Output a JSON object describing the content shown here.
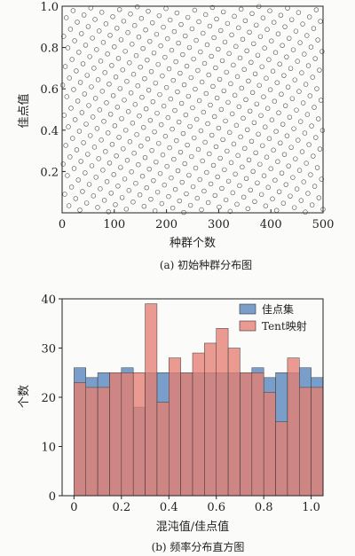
{
  "chart_data": [
    {
      "type": "scatter",
      "caption": "(a) 初始种群分布图",
      "xlabel": "种群个数",
      "ylabel": "佳点值",
      "xlim": [
        0,
        500
      ],
      "ylim": [
        0,
        1.0
      ],
      "xticks": [
        "0",
        "100",
        "200",
        "300",
        "400",
        "500"
      ],
      "yticks": [
        "0.2",
        "0.4",
        "0.6",
        "0.8",
        "1.0"
      ],
      "marker": "hollow-circle",
      "n_points": 500,
      "generator": "fractional part of i × golden ratio, i = 1…500",
      "point_color": "#555555"
    },
    {
      "type": "bar",
      "caption": "(b) 频率分布直方图",
      "xlabel": "混沌值/佳点值",
      "ylabel": "个数",
      "xlim": [
        -0.05,
        1.05
      ],
      "ylim": [
        0,
        40
      ],
      "xticks": [
        "0",
        "0.2",
        "0.4",
        "0.6",
        "0.8",
        "1.0"
      ],
      "yticks": [
        "0",
        "10",
        "20",
        "30",
        "40"
      ],
      "bin_edges": [
        0,
        0.05,
        0.1,
        0.15,
        0.2,
        0.25,
        0.3,
        0.35,
        0.4,
        0.45,
        0.5,
        0.55,
        0.6,
        0.65,
        0.7,
        0.75,
        0.8,
        0.85,
        0.9,
        0.95,
        1.0
      ],
      "legend_position": "top-right",
      "series": [
        {
          "name": "佳点集",
          "color": "#6b93c4",
          "values": [
            26,
            24,
            25,
            25,
            26,
            18,
            25,
            25,
            25,
            25,
            25,
            25,
            25,
            25,
            25,
            26,
            24,
            25,
            25,
            26,
            24
          ]
        },
        {
          "name": "Tent映射",
          "color": "#e57f72",
          "values": [
            23,
            22,
            22,
            25,
            25,
            25,
            39,
            19,
            28,
            25,
            29,
            31,
            34,
            30,
            25,
            25,
            21,
            15,
            28,
            22,
            22
          ]
        }
      ]
    }
  ]
}
